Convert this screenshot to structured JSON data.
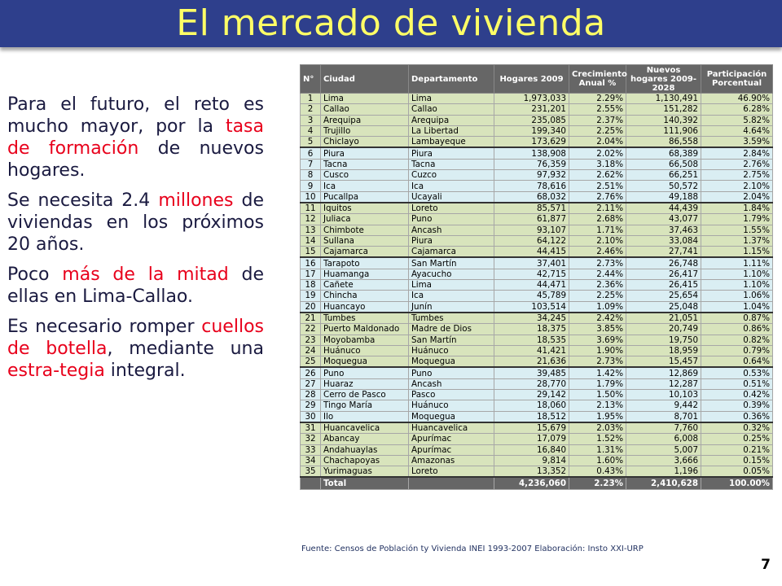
{
  "title": "El mercado de vivienda",
  "paragraphs": [
    [
      {
        "t": "Para el futuro, el reto es mucho mayor, por la ",
        "red": false
      },
      {
        "t": "tasa de formación",
        "red": true
      },
      {
        "t": " de nuevos hogares.",
        "red": false
      }
    ],
    [
      {
        "t": "Se necesita 2.4 ",
        "red": false
      },
      {
        "t": "millones",
        "red": true
      },
      {
        "t": " de viviendas en los próximos 20 años.",
        "red": false
      }
    ],
    [
      {
        "t": "Poco ",
        "red": false
      },
      {
        "t": "más de la mitad",
        "red": true
      },
      {
        "t": " de ellas en Lima-Callao.",
        "red": false
      }
    ],
    [
      {
        "t": "Es necesario romper ",
        "red": false
      },
      {
        "t": "cuellos de botella",
        "red": true
      },
      {
        "t": ", mediante una ",
        "red": false
      },
      {
        "t": "estra-tegia",
        "red": true
      },
      {
        "t": " integral.",
        "red": false
      }
    ]
  ],
  "table": {
    "headers": [
      "N°",
      "Ciudad",
      "Departamento",
      "Hogares 2009",
      "Crecimiento Anual %",
      "Nuevos hogares 2009-2028",
      "Participación Porcentual"
    ],
    "rows": [
      [
        "1",
        "Lima",
        "Lima",
        "1,973,033",
        "2.29%",
        "1,130,491",
        "46.90%"
      ],
      [
        "2",
        "Callao",
        "Callao",
        "231,201",
        "2.55%",
        "151,282",
        "6.28%"
      ],
      [
        "3",
        "Arequipa",
        "Arequipa",
        "235,085",
        "2.37%",
        "140,392",
        "5.82%"
      ],
      [
        "4",
        "Trujillo",
        "La Libertad",
        "199,340",
        "2.25%",
        "111,906",
        "4.64%"
      ],
      [
        "5",
        "Chiclayo",
        "Lambayeque",
        "173,629",
        "2.04%",
        "86,558",
        "3.59%"
      ],
      [
        "6",
        "Piura",
        "Piura",
        "138,908",
        "2.02%",
        "68,389",
        "2.84%"
      ],
      [
        "7",
        "Tacna",
        "Tacna",
        "76,359",
        "3.18%",
        "66,508",
        "2.76%"
      ],
      [
        "8",
        "Cusco",
        "Cuzco",
        "97,932",
        "2.62%",
        "66,251",
        "2.75%"
      ],
      [
        "9",
        "Ica",
        "Ica",
        "78,616",
        "2.51%",
        "50,572",
        "2.10%"
      ],
      [
        "10",
        "Pucallpa",
        "Ucayali",
        "68,032",
        "2.76%",
        "49,188",
        "2.04%"
      ],
      [
        "11",
        "Iquitos",
        "Loreto",
        "85,571",
        "2.11%",
        "44,439",
        "1.84%"
      ],
      [
        "12",
        "Juliaca",
        "Puno",
        "61,877",
        "2.68%",
        "43,077",
        "1.79%"
      ],
      [
        "13",
        "Chimbote",
        "Ancash",
        "93,107",
        "1.71%",
        "37,463",
        "1.55%"
      ],
      [
        "14",
        "Sullana",
        "Piura",
        "64,122",
        "2.10%",
        "33,084",
        "1.37%"
      ],
      [
        "15",
        "Cajamarca",
        "Cajamarca",
        "44,415",
        "2.46%",
        "27,741",
        "1.15%"
      ],
      [
        "16",
        "Tarapoto",
        "San Martín",
        "37,401",
        "2.73%",
        "26,748",
        "1.11%"
      ],
      [
        "17",
        "Huamanga",
        "Ayacucho",
        "42,715",
        "2.44%",
        "26,417",
        "1.10%"
      ],
      [
        "18",
        "Cañete",
        "Lima",
        "44,471",
        "2.36%",
        "26,415",
        "1.10%"
      ],
      [
        "19",
        "Chincha",
        "Ica",
        "45,789",
        "2.25%",
        "25,654",
        "1.06%"
      ],
      [
        "20",
        "Huancayo",
        "Junín",
        "103,514",
        "1.09%",
        "25,048",
        "1.04%"
      ],
      [
        "21",
        "Tumbes",
        "Tumbes",
        "34,245",
        "2.42%",
        "21,051",
        "0.87%"
      ],
      [
        "22",
        "Puerto Maldonado",
        "Madre de Dios",
        "18,375",
        "3.85%",
        "20,749",
        "0.86%"
      ],
      [
        "23",
        "Moyobamba",
        "San Martín",
        "18,535",
        "3.69%",
        "19,750",
        "0.82%"
      ],
      [
        "24",
        "Huánuco",
        "Huánuco",
        "41,421",
        "1.90%",
        "18,959",
        "0.79%"
      ],
      [
        "25",
        "Moquegua",
        "Moquegua",
        "21,636",
        "2.73%",
        "15,457",
        "0.64%"
      ],
      [
        "26",
        "Puno",
        "Puno",
        "39,485",
        "1.42%",
        "12,869",
        "0.53%"
      ],
      [
        "27",
        "Huaraz",
        "Ancash",
        "28,770",
        "1.79%",
        "12,287",
        "0.51%"
      ],
      [
        "28",
        "Cerro de Pasco",
        "Pasco",
        "29,142",
        "1.50%",
        "10,103",
        "0.42%"
      ],
      [
        "29",
        "Tingo María",
        "Huánuco",
        "18,060",
        "2.13%",
        "9,442",
        "0.39%"
      ],
      [
        "30",
        "Ilo",
        "Moquegua",
        "18,512",
        "1.95%",
        "8,701",
        "0.36%"
      ],
      [
        "31",
        "Huancavelica",
        "Huancavelica",
        "15,679",
        "2.03%",
        "7,760",
        "0.32%"
      ],
      [
        "32",
        "Abancay",
        "Apurímac",
        "17,079",
        "1.52%",
        "6,008",
        "0.25%"
      ],
      [
        "33",
        "Andahuaylas",
        "Apurímac",
        "16,840",
        "1.31%",
        "5,007",
        "0.21%"
      ],
      [
        "34",
        "Chachapoyas",
        "Amazonas",
        "9,814",
        "1.60%",
        "3,666",
        "0.15%"
      ],
      [
        "35",
        "Yurimaguas",
        "Loreto",
        "13,352",
        "0.43%",
        "1,196",
        "0.05%"
      ]
    ],
    "total": [
      "",
      "Total",
      "",
      "4,236,060",
      "2.23%",
      "2,410,628",
      "100.00%"
    ]
  },
  "source": "Fuente: Censos de Población ty Vivienda INEI 1993-2007   Elaboración: Insto XXI-URP",
  "page_number": "7",
  "colors": {
    "title_bar": "#2e3f8c",
    "title_text": "#ffff66",
    "highlight": "#e8001b",
    "row_green": "#d8e4bc",
    "row_blue": "#daeef3",
    "header": "#666666"
  }
}
